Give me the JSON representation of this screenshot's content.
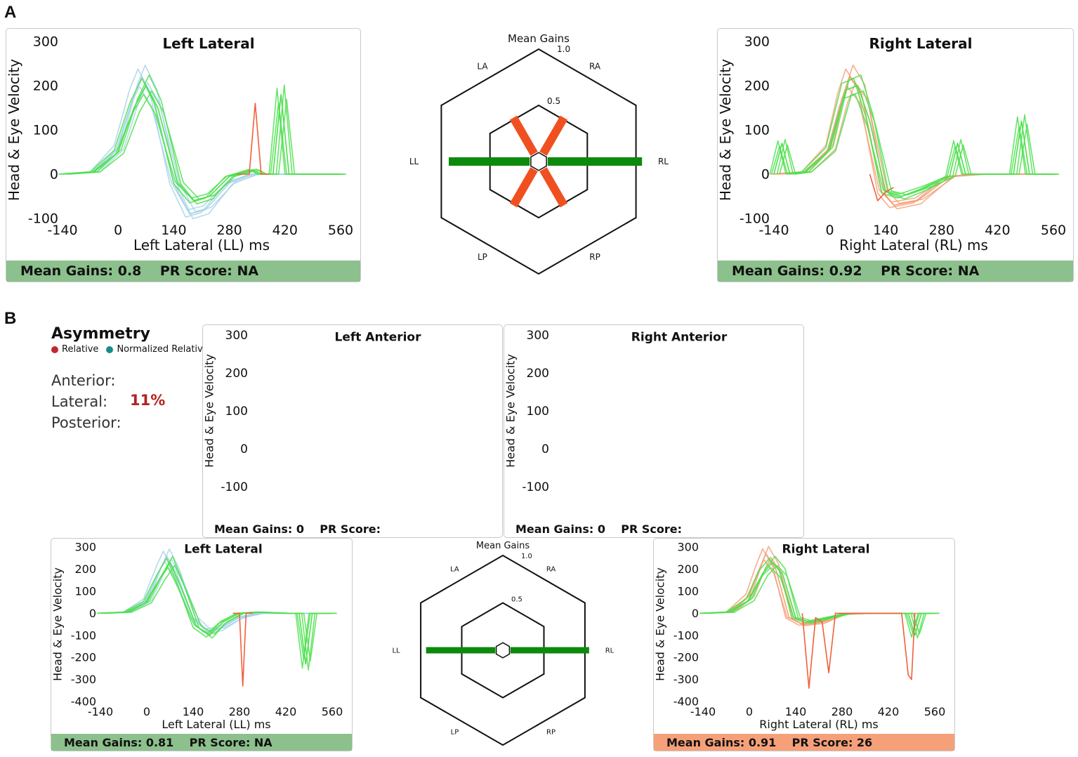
{
  "panel_labels": {
    "a": "A",
    "b": "B"
  },
  "colors": {
    "green_footer": "#8cc08c",
    "orange_footer": "#f6a07a",
    "head_trace": "#a8d4ea",
    "eye_trace": "#4de04d",
    "right_head_trace": "#f4a07a",
    "outlier_trace": "#f0603a",
    "gain_green": "#0c8a0c",
    "gain_orange": "#f05020"
  },
  "common": {
    "y_axis_label": "Head & Eye Velocity",
    "radar_title": "Mean Gains",
    "radar_axes": {
      "LA": "LA",
      "RA": "RA",
      "LL": "LL",
      "RL": "RL",
      "LP": "LP",
      "RP": "RP"
    },
    "radar_ring_outer": "1.0",
    "radar_ring_inner": "0.5"
  },
  "asymmetry": {
    "title": "Asymmetry",
    "legend_relative": "Relative",
    "legend_normalized": "Normalized Relative",
    "relative_color": "#c0282d",
    "normalized_color": "#1a8a8a",
    "anterior_label": "Anterior:",
    "lateral_label": "Lateral:",
    "lateral_value": "11%",
    "posterior_label": "Posterior:"
  },
  "chart_data": [
    {
      "id": "A_left_lateral",
      "type": "line",
      "title": "Left Lateral",
      "xlabel": "Left Lateral (LL) ms",
      "ylabel": "Head & Eye Velocity",
      "x_ticks": [
        -140,
        0,
        140,
        280,
        420,
        560
      ],
      "y_ticks": [
        -100,
        0,
        100,
        200,
        300
      ],
      "xlim": [
        -140,
        560
      ],
      "ylim": [
        -100,
        300
      ],
      "footer": "Mean Gains: 0.8    PR Score: NA",
      "series": [
        {
          "name": "head",
          "values": [
            [
              -140,
              0
            ],
            [
              -60,
              5
            ],
            [
              0,
              60
            ],
            [
              40,
              180
            ],
            [
              60,
              220
            ],
            [
              90,
              170
            ],
            [
              140,
              -20
            ],
            [
              180,
              -90
            ],
            [
              220,
              -80
            ],
            [
              280,
              -20
            ],
            [
              340,
              0
            ],
            [
              420,
              0
            ],
            [
              560,
              0
            ]
          ]
        },
        {
          "name": "eye",
          "values": [
            [
              -140,
              0
            ],
            [
              -60,
              5
            ],
            [
              0,
              50
            ],
            [
              40,
              150
            ],
            [
              70,
              200
            ],
            [
              100,
              150
            ],
            [
              150,
              -20
            ],
            [
              190,
              -60
            ],
            [
              230,
              -50
            ],
            [
              280,
              -5
            ],
            [
              340,
              10
            ],
            [
              360,
              0
            ],
            [
              390,
              0
            ],
            [
              410,
              180
            ],
            [
              430,
              0
            ],
            [
              560,
              0
            ]
          ]
        },
        {
          "name": "eye-outlier",
          "values": [
            [
              300,
              0
            ],
            [
              330,
              0
            ],
            [
              345,
              160
            ],
            [
              360,
              0
            ],
            [
              380,
              0
            ]
          ]
        }
      ]
    },
    {
      "id": "A_right_lateral",
      "type": "line",
      "title": "Right Lateral",
      "xlabel": "Right Lateral (RL) ms",
      "ylabel": "Head & Eye Velocity",
      "x_ticks": [
        -140,
        0,
        140,
        280,
        420,
        560
      ],
      "y_ticks": [
        -100,
        0,
        100,
        200,
        300
      ],
      "xlim": [
        -140,
        560
      ],
      "ylim": [
        -100,
        300
      ],
      "footer": "Mean Gains: 0.92    PR Score: NA",
      "series": [
        {
          "name": "head",
          "values": [
            [
              -140,
              0
            ],
            [
              -60,
              5
            ],
            [
              0,
              60
            ],
            [
              30,
              170
            ],
            [
              50,
              220
            ],
            [
              80,
              180
            ],
            [
              130,
              -40
            ],
            [
              160,
              -70
            ],
            [
              220,
              -60
            ],
            [
              300,
              -5
            ],
            [
              380,
              0
            ],
            [
              560,
              0
            ]
          ]
        },
        {
          "name": "eye",
          "values": [
            [
              -140,
              0
            ],
            [
              -120,
              70
            ],
            [
              -100,
              0
            ],
            [
              -60,
              5
            ],
            [
              0,
              55
            ],
            [
              40,
              190
            ],
            [
              70,
              200
            ],
            [
              100,
              120
            ],
            [
              140,
              -40
            ],
            [
              180,
              -50
            ],
            [
              240,
              -30
            ],
            [
              300,
              -5
            ],
            [
              320,
              70
            ],
            [
              340,
              0
            ],
            [
              460,
              0
            ],
            [
              480,
              120
            ],
            [
              500,
              0
            ],
            [
              560,
              0
            ]
          ]
        },
        {
          "name": "eye-outlier",
          "values": [
            [
              100,
              0
            ],
            [
              120,
              -60
            ],
            [
              140,
              -40
            ],
            [
              160,
              -30
            ]
          ]
        }
      ]
    },
    {
      "id": "B_left_anterior",
      "type": "line",
      "title": "Left Anterior",
      "xlabel": "",
      "ylabel": "Head & Eye Velocity",
      "x_ticks": [],
      "y_ticks": [
        -100,
        0,
        100,
        200,
        300
      ],
      "xlim": [
        -140,
        560
      ],
      "ylim": [
        -100,
        300
      ],
      "footer": "Mean Gains: 0    PR Score:",
      "series": []
    },
    {
      "id": "B_right_anterior",
      "type": "line",
      "title": "Right Anterior",
      "xlabel": "",
      "ylabel": "Head & Eye Velocity",
      "x_ticks": [],
      "y_ticks": [
        -100,
        0,
        100,
        200,
        300
      ],
      "xlim": [
        -140,
        560
      ],
      "ylim": [
        -100,
        300
      ],
      "footer": "Mean Gains: 0    PR Score:",
      "series": []
    },
    {
      "id": "B_left_lateral",
      "type": "line",
      "title": "Left Lateral",
      "xlabel": "Left Lateral (LL) ms",
      "ylabel": "Head & Eye Velocity",
      "x_ticks": [
        -140,
        0,
        140,
        280,
        420,
        560
      ],
      "y_ticks": [
        -400,
        -300,
        -200,
        -100,
        0,
        100,
        200,
        300
      ],
      "xlim": [
        -140,
        560
      ],
      "ylim": [
        -400,
        300
      ],
      "footer": "Mean Gains: 0.81    PR Score: NA",
      "series": [
        {
          "name": "head",
          "values": [
            [
              -140,
              0
            ],
            [
              -60,
              5
            ],
            [
              0,
              60
            ],
            [
              40,
              200
            ],
            [
              60,
              260
            ],
            [
              90,
              180
            ],
            [
              140,
              -20
            ],
            [
              180,
              -80
            ],
            [
              220,
              -70
            ],
            [
              280,
              -20
            ],
            [
              340,
              0
            ],
            [
              420,
              0
            ],
            [
              560,
              0
            ]
          ]
        },
        {
          "name": "eye",
          "values": [
            [
              -140,
              0
            ],
            [
              -60,
              5
            ],
            [
              0,
              50
            ],
            [
              40,
              160
            ],
            [
              70,
              230
            ],
            [
              100,
              130
            ],
            [
              150,
              -60
            ],
            [
              190,
              -100
            ],
            [
              230,
              -40
            ],
            [
              280,
              0
            ],
            [
              340,
              5
            ],
            [
              420,
              0
            ],
            [
              460,
              0
            ],
            [
              480,
              -230
            ],
            [
              500,
              0
            ],
            [
              560,
              0
            ]
          ]
        },
        {
          "name": "eye-outlier",
          "values": [
            [
              260,
              0
            ],
            [
              280,
              0
            ],
            [
              290,
              -330
            ],
            [
              300,
              0
            ],
            [
              320,
              0
            ]
          ]
        }
      ]
    },
    {
      "id": "B_right_lateral",
      "type": "line",
      "title": "Right Lateral",
      "xlabel": "Right Lateral (RL) ms",
      "ylabel": "Head & Eye Velocity",
      "x_ticks": [
        -140,
        0,
        140,
        280,
        420,
        560
      ],
      "y_ticks": [
        -400,
        -300,
        -200,
        -100,
        0,
        100,
        200,
        300
      ],
      "xlim": [
        -140,
        560
      ],
      "ylim": [
        -400,
        300
      ],
      "footer": "Mean Gains: 0.91    PR Score: 26",
      "series": [
        {
          "name": "head",
          "values": [
            [
              -140,
              0
            ],
            [
              -60,
              5
            ],
            [
              0,
              80
            ],
            [
              30,
              200
            ],
            [
              50,
              270
            ],
            [
              80,
              200
            ],
            [
              120,
              -20
            ],
            [
              160,
              -50
            ],
            [
              220,
              -40
            ],
            [
              280,
              -5
            ],
            [
              360,
              0
            ],
            [
              560,
              0
            ]
          ]
        },
        {
          "name": "eye",
          "values": [
            [
              -140,
              0
            ],
            [
              -60,
              5
            ],
            [
              0,
              60
            ],
            [
              40,
              180
            ],
            [
              70,
              230
            ],
            [
              100,
              180
            ],
            [
              140,
              -20
            ],
            [
              180,
              -40
            ],
            [
              240,
              -20
            ],
            [
              300,
              0
            ],
            [
              480,
              0
            ],
            [
              500,
              -100
            ],
            [
              520,
              0
            ],
            [
              560,
              0
            ]
          ]
        },
        {
          "name": "eye-outlier",
          "values": [
            [
              160,
              0
            ],
            [
              180,
              -340
            ],
            [
              200,
              -20
            ],
            [
              220,
              -40
            ],
            [
              240,
              -270
            ],
            [
              260,
              0
            ],
            [
              460,
              0
            ],
            [
              480,
              -280
            ],
            [
              490,
              -300
            ],
            [
              500,
              0
            ]
          ]
        }
      ]
    },
    {
      "id": "A_radar",
      "type": "radar",
      "title": "Mean Gains",
      "axes": [
        "LA",
        "RA",
        "LL",
        "RL",
        "LP",
        "RP"
      ],
      "rings": [
        0.5,
        1.0
      ],
      "gains": {
        "LL": 0.8,
        "RL": 0.92,
        "LA": 0.45,
        "RA": 0.45,
        "LP": 0.45,
        "RP": 0.45
      }
    },
    {
      "id": "B_radar",
      "type": "radar",
      "title": "Mean Gains",
      "axes": [
        "LA",
        "RA",
        "LL",
        "RL",
        "LP",
        "RP"
      ],
      "rings": [
        0.5,
        1.0
      ],
      "gains": {
        "LL": 0.81,
        "RL": 0.91
      }
    }
  ]
}
